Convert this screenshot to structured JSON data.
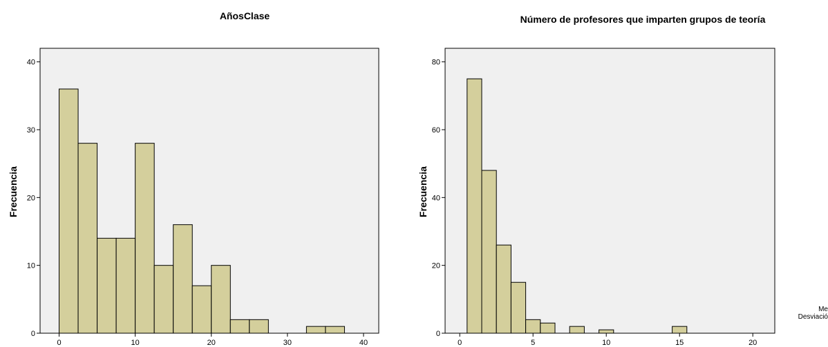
{
  "chart_data": [
    {
      "type": "bar",
      "title": "AñosClase",
      "ylabel": "Frecuencia",
      "xlabel": "",
      "bin_width": 2.5,
      "x_start": 0,
      "values": [
        36,
        28,
        14,
        14,
        28,
        10,
        16,
        7,
        10,
        2,
        2,
        0,
        0,
        1,
        1
      ],
      "xlim": [
        -2.5,
        42
      ],
      "ylim": [
        0,
        42
      ],
      "xticks": [
        0,
        10,
        20,
        30,
        40
      ],
      "yticks": [
        0,
        10,
        20,
        30,
        40
      ],
      "bar_color": "#d4cf9c",
      "panel_color": "#f0f0f0"
    },
    {
      "type": "bar",
      "title": "Número de profesores que imparten grupos de teoría",
      "ylabel": "Frecuencia",
      "xlabel": "",
      "bin_width": 1,
      "x_start": 0.5,
      "values": [
        75,
        48,
        26,
        15,
        4,
        3,
        0,
        2,
        0,
        1,
        0,
        0,
        0,
        0,
        2
      ],
      "xlim": [
        -1,
        21.5
      ],
      "ylim": [
        0,
        84
      ],
      "xticks": [
        0,
        5,
        10,
        15,
        20
      ],
      "yticks": [
        0,
        20,
        40,
        60,
        80
      ],
      "bar_color": "#d4cf9c",
      "panel_color": "#f0f0f0",
      "stats_fragments": [
        "Me",
        "Desviació"
      ]
    }
  ]
}
